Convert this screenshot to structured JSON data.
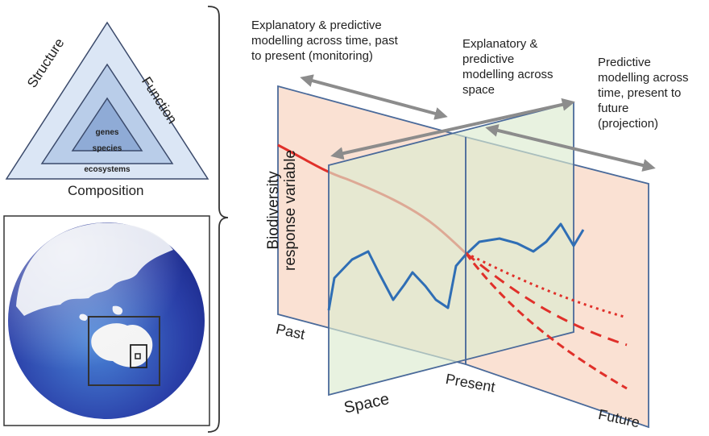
{
  "triangle": {
    "sides": {
      "left": "Structure",
      "right": "Function",
      "bottom": "Composition"
    },
    "levels": [
      "genes",
      "species",
      "ecosystems"
    ],
    "colors": {
      "outer": "#dbe6f5",
      "middle": "#b9cde9",
      "inner": "#8fabd6",
      "edge": "#3b4a6b"
    }
  },
  "globe": {
    "icon": "earth-globe-icon",
    "colors": {
      "ocean_dark": "#1c2a8c",
      "ocean_light": "#4a86d8",
      "land": "#f4f4f4"
    }
  },
  "annotations": {
    "time_past": [
      "Explanatory & predictive",
      "modelling across time, past",
      "to present (monitoring)"
    ],
    "space": [
      "Explanatory &",
      "predictive",
      "modelling across",
      "space"
    ],
    "time_future": [
      "Predictive",
      "modelling across",
      "time, present to",
      "future",
      "(projection)"
    ]
  },
  "axes": {
    "y_label": [
      "Biodiversity",
      "response variable"
    ],
    "past": "Past",
    "space": "Space",
    "present": "Present",
    "future": "Future"
  },
  "panel_colors": {
    "past_panel": "#f9dccb",
    "space_panel": "#dcebcf",
    "future_panel": "#f9dccb",
    "edge": "#4a6a9a",
    "arrow": "#8c8c8c",
    "trend_line": "#e0302a",
    "space_line": "#2f6eb5"
  }
}
